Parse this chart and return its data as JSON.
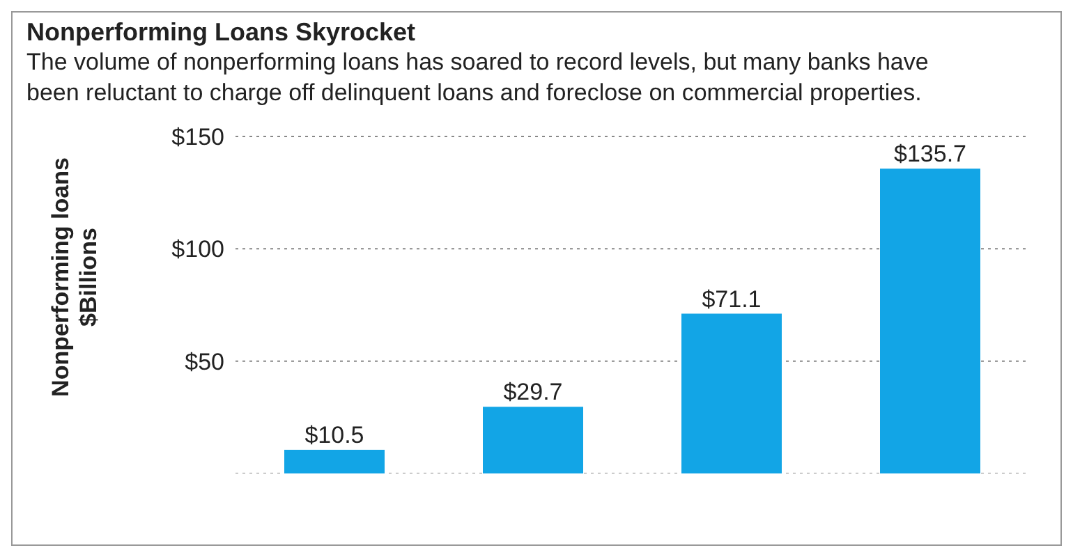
{
  "chart_data": {
    "type": "bar",
    "title": "Nonperforming Loans Skyrocket",
    "subtitle": "The volume of nonperforming loans has soared to record levels, but many banks have been reluctant to charge off delinquent loans and foreclose on commercial properties.",
    "ylabel": "Nonperforming loans\n$Billions",
    "categories": [
      null,
      null,
      null,
      null
    ],
    "values": [
      10.5,
      29.7,
      71.1,
      135.7
    ],
    "color": "#12a5e6",
    "value_labels": [
      "$10.5",
      "$29.7",
      "$71.1",
      "$135.7"
    ],
    "ylim": [
      0,
      150
    ],
    "yticks": [
      {
        "value": 50,
        "label": "$50"
      },
      {
        "value": 100,
        "label": "$100"
      },
      {
        "value": 150,
        "label": "$150"
      }
    ],
    "grid": "y",
    "legend": false
  }
}
